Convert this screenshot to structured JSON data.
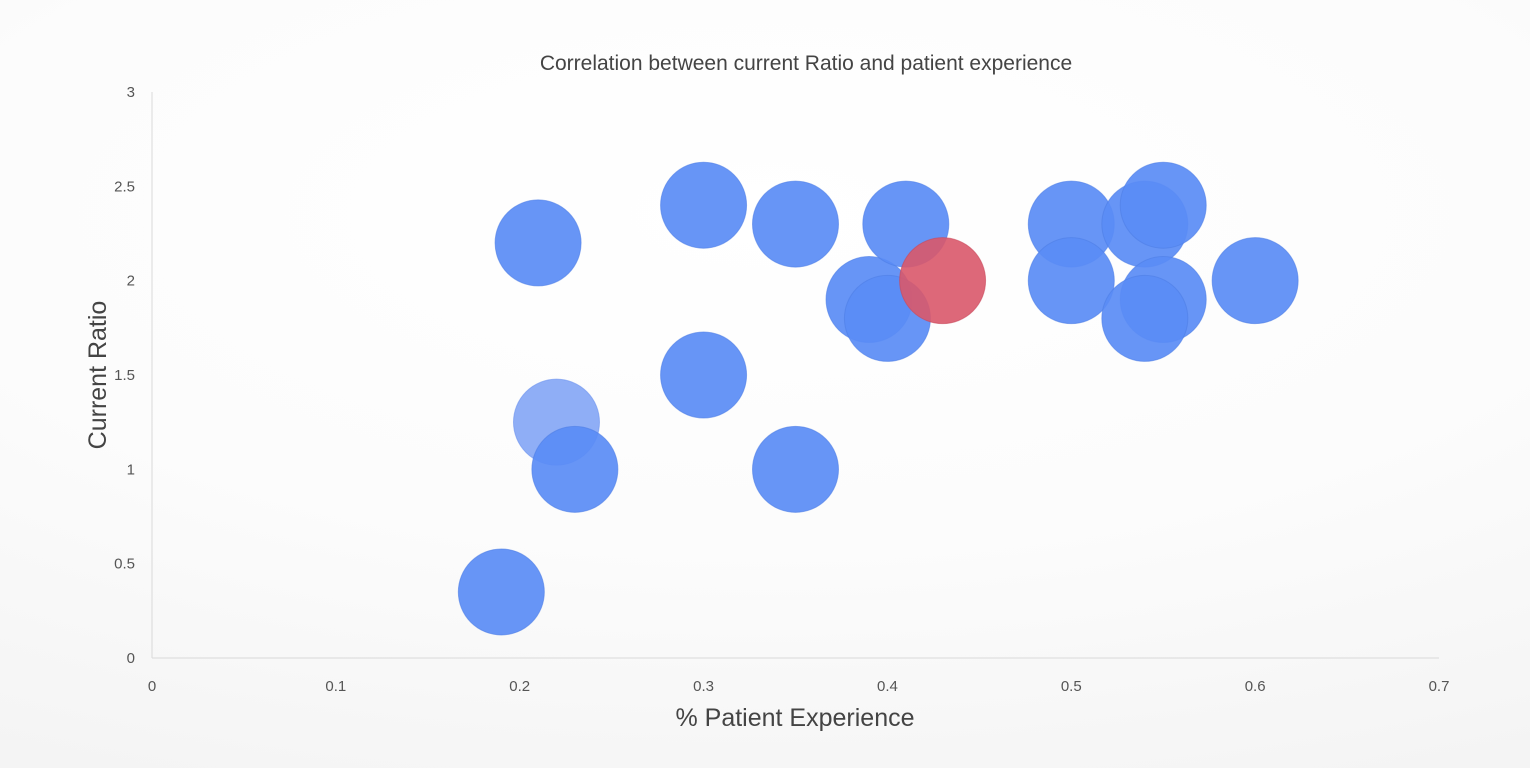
{
  "chart_data": {
    "type": "scatter",
    "subtype": "bubble",
    "title": "Correlation between current Ratio and patient experience",
    "xlabel": "% Patient Experience",
    "ylabel": "Current Ratio",
    "xlim": [
      0,
      0.7
    ],
    "ylim": [
      0,
      3
    ],
    "x_ticks": [
      "0",
      "0.1",
      "0.2",
      "0.3",
      "0.4",
      "0.5",
      "0.6",
      "0.7"
    ],
    "y_ticks": [
      "0",
      "0.5",
      "1",
      "1.5",
      "2",
      "2.5",
      "3"
    ],
    "grid": false,
    "legend": "none",
    "colors": {
      "bubble": "#5a8cf5",
      "highlight": "#d9586a",
      "faded": "#7ba0f5"
    },
    "series": [
      {
        "points": [
          {
            "x": 0.19,
            "y": 0.35
          },
          {
            "x": 0.21,
            "y": 2.2
          },
          {
            "x": 0.22,
            "y": 1.25,
            "style": "faded"
          },
          {
            "x": 0.23,
            "y": 1.0
          },
          {
            "x": 0.3,
            "y": 2.4
          },
          {
            "x": 0.3,
            "y": 1.5
          },
          {
            "x": 0.35,
            "y": 2.3
          },
          {
            "x": 0.35,
            "y": 1.0
          },
          {
            "x": 0.39,
            "y": 1.9
          },
          {
            "x": 0.4,
            "y": 1.8
          },
          {
            "x": 0.41,
            "y": 2.3
          },
          {
            "x": 0.43,
            "y": 2.0,
            "style": "highlight"
          },
          {
            "x": 0.5,
            "y": 2.3
          },
          {
            "x": 0.5,
            "y": 2.0
          },
          {
            "x": 0.54,
            "y": 2.3
          },
          {
            "x": 0.55,
            "y": 2.4
          },
          {
            "x": 0.55,
            "y": 1.9
          },
          {
            "x": 0.54,
            "y": 1.8
          },
          {
            "x": 0.6,
            "y": 2.0
          }
        ]
      }
    ]
  }
}
